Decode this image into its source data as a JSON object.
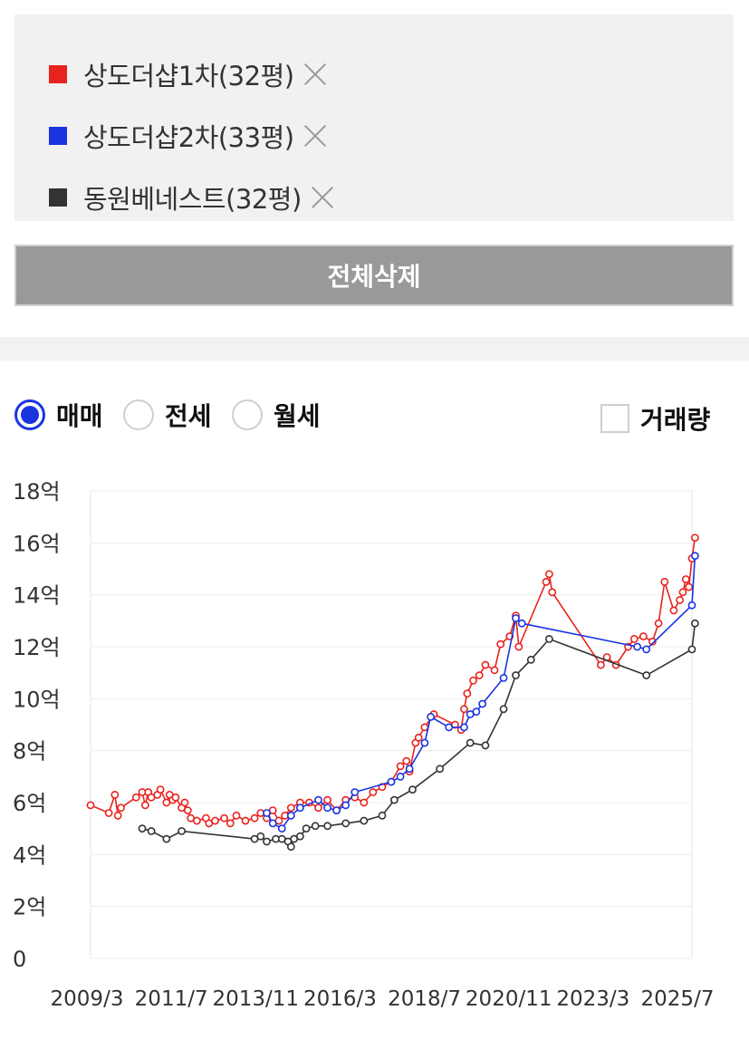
{
  "legend": {
    "items": [
      {
        "label": "상도더샵1차(32평)",
        "color": "#e8231f"
      },
      {
        "label": "상도더샵2차(33평)",
        "color": "#1a35e0"
      },
      {
        "label": "동원베네스트(32평)",
        "color": "#333333"
      }
    ],
    "remove_icon": "close-icon"
  },
  "clear_button": {
    "label": "전체삭제"
  },
  "trade_type": {
    "options": [
      {
        "label": "매매",
        "selected": true
      },
      {
        "label": "전세",
        "selected": false
      },
      {
        "label": "월세",
        "selected": false
      }
    ]
  },
  "volume_toggle": {
    "label": "거래량",
    "checked": false
  },
  "chart_data": {
    "type": "line",
    "y_unit": "억",
    "ylim": [
      0,
      18
    ],
    "y_ticks": [
      "0",
      "2억",
      "4억",
      "6억",
      "8억",
      "10억",
      "12억",
      "14억",
      "16억",
      "18억"
    ],
    "x_ticks": [
      "2009/3",
      "2011/7",
      "2013/11",
      "2016/3",
      "2018/7",
      "2020/11",
      "2023/3",
      "2025/7"
    ],
    "xlim": [
      "2009-03",
      "2025-09"
    ],
    "grid": true,
    "series": [
      {
        "name": "상도더샵1차(32평)",
        "color": "#e8231f",
        "points": [
          [
            "2009-03",
            5.9
          ],
          [
            "2009-09",
            5.6
          ],
          [
            "2009-11",
            6.3
          ],
          [
            "2009-12",
            5.5
          ],
          [
            "2010-01",
            5.8
          ],
          [
            "2010-06",
            6.2
          ],
          [
            "2010-08",
            6.4
          ],
          [
            "2010-09",
            5.9
          ],
          [
            "2010-10",
            6.4
          ],
          [
            "2010-11",
            6.2
          ],
          [
            "2011-01",
            6.3
          ],
          [
            "2011-02",
            6.5
          ],
          [
            "2011-04",
            6.0
          ],
          [
            "2011-05",
            6.3
          ],
          [
            "2011-06",
            6.1
          ],
          [
            "2011-07",
            6.2
          ],
          [
            "2011-09",
            5.8
          ],
          [
            "2011-10",
            6.0
          ],
          [
            "2011-11",
            5.7
          ],
          [
            "2011-12",
            5.4
          ],
          [
            "2012-02",
            5.3
          ],
          [
            "2012-05",
            5.4
          ],
          [
            "2012-06",
            5.2
          ],
          [
            "2012-08",
            5.3
          ],
          [
            "2012-11",
            5.4
          ],
          [
            "2013-01",
            5.2
          ],
          [
            "2013-03",
            5.5
          ],
          [
            "2013-06",
            5.3
          ],
          [
            "2013-09",
            5.4
          ],
          [
            "2013-11",
            5.6
          ],
          [
            "2014-01",
            5.4
          ],
          [
            "2014-03",
            5.7
          ],
          [
            "2014-05",
            5.3
          ],
          [
            "2014-07",
            5.5
          ],
          [
            "2014-09",
            5.8
          ],
          [
            "2014-12",
            6.0
          ],
          [
            "2015-03",
            6.0
          ],
          [
            "2015-06",
            5.8
          ],
          [
            "2015-09",
            6.1
          ],
          [
            "2015-12",
            5.7
          ],
          [
            "2016-03",
            6.1
          ],
          [
            "2016-06",
            6.2
          ],
          [
            "2016-09",
            6.0
          ],
          [
            "2016-12",
            6.4
          ],
          [
            "2017-03",
            6.6
          ],
          [
            "2017-06",
            6.8
          ],
          [
            "2017-09",
            7.4
          ],
          [
            "2017-11",
            7.6
          ],
          [
            "2017-12",
            7.2
          ],
          [
            "2018-02",
            8.3
          ],
          [
            "2018-03",
            8.5
          ],
          [
            "2018-05",
            8.9
          ],
          [
            "2018-08",
            9.4
          ],
          [
            "2019-03",
            9.0
          ],
          [
            "2019-05",
            8.8
          ],
          [
            "2019-06",
            9.6
          ],
          [
            "2019-07",
            10.2
          ],
          [
            "2019-09",
            10.7
          ],
          [
            "2019-11",
            10.9
          ],
          [
            "2020-01",
            11.3
          ],
          [
            "2020-04",
            11.1
          ],
          [
            "2020-06",
            12.1
          ],
          [
            "2020-09",
            12.4
          ],
          [
            "2020-11",
            13.2
          ],
          [
            "2020-12",
            12.0
          ],
          [
            "2021-09",
            14.5
          ],
          [
            "2021-10",
            14.8
          ],
          [
            "2021-11",
            14.1
          ],
          [
            "2023-03",
            11.3
          ],
          [
            "2023-05",
            11.6
          ],
          [
            "2023-08",
            11.3
          ],
          [
            "2023-12",
            12.0
          ],
          [
            "2024-02",
            12.3
          ],
          [
            "2024-05",
            12.4
          ],
          [
            "2024-08",
            12.2
          ],
          [
            "2024-10",
            12.9
          ],
          [
            "2024-12",
            14.5
          ],
          [
            "2025-03",
            13.4
          ],
          [
            "2025-05",
            13.8
          ],
          [
            "2025-06",
            14.1
          ],
          [
            "2025-07",
            14.6
          ],
          [
            "2025-08",
            14.3
          ],
          [
            "2025-09",
            15.4
          ],
          [
            "2025-10",
            16.2
          ]
        ]
      },
      {
        "name": "상도더샵2차(33평)",
        "color": "#1a35e0",
        "points": [
          [
            "2014-01",
            5.6
          ],
          [
            "2014-03",
            5.2
          ],
          [
            "2014-06",
            5.0
          ],
          [
            "2014-09",
            5.5
          ],
          [
            "2014-12",
            5.8
          ],
          [
            "2015-06",
            6.1
          ],
          [
            "2015-09",
            5.8
          ],
          [
            "2015-12",
            5.7
          ],
          [
            "2016-03",
            5.9
          ],
          [
            "2016-06",
            6.4
          ],
          [
            "2017-06",
            6.8
          ],
          [
            "2017-09",
            7.0
          ],
          [
            "2017-12",
            7.3
          ],
          [
            "2018-05",
            8.3
          ],
          [
            "2018-07",
            9.3
          ],
          [
            "2019-01",
            8.9
          ],
          [
            "2019-06",
            8.9
          ],
          [
            "2019-08",
            9.4
          ],
          [
            "2019-10",
            9.5
          ],
          [
            "2019-12",
            9.8
          ],
          [
            "2020-07",
            10.8
          ],
          [
            "2020-11",
            13.1
          ],
          [
            "2021-01",
            12.9
          ],
          [
            "2024-03",
            12.0
          ],
          [
            "2024-06",
            11.9
          ],
          [
            "2025-09",
            13.6
          ],
          [
            "2025-10",
            15.5
          ]
        ]
      },
      {
        "name": "동원베네스트(32평)",
        "color": "#333333",
        "points": [
          [
            "2010-08",
            5.0
          ],
          [
            "2010-11",
            4.9
          ],
          [
            "2011-04",
            4.6
          ],
          [
            "2011-09",
            4.9
          ],
          [
            "2013-09",
            4.6
          ],
          [
            "2013-11",
            4.7
          ],
          [
            "2014-01",
            4.5
          ],
          [
            "2014-04",
            4.6
          ],
          [
            "2014-06",
            4.6
          ],
          [
            "2014-08",
            4.5
          ],
          [
            "2014-09",
            4.3
          ],
          [
            "2014-10",
            4.6
          ],
          [
            "2014-12",
            4.7
          ],
          [
            "2015-02",
            5.0
          ],
          [
            "2015-05",
            5.1
          ],
          [
            "2015-09",
            5.1
          ],
          [
            "2016-03",
            5.2
          ],
          [
            "2016-09",
            5.3
          ],
          [
            "2017-03",
            5.5
          ],
          [
            "2017-07",
            6.1
          ],
          [
            "2018-01",
            6.5
          ],
          [
            "2018-10",
            7.3
          ],
          [
            "2019-08",
            8.3
          ],
          [
            "2020-01",
            8.2
          ],
          [
            "2020-07",
            9.6
          ],
          [
            "2020-11",
            10.9
          ],
          [
            "2021-04",
            11.5
          ],
          [
            "2021-10",
            12.3
          ],
          [
            "2024-06",
            10.9
          ],
          [
            "2025-09",
            11.9
          ],
          [
            "2025-10",
            12.9
          ]
        ]
      }
    ]
  }
}
